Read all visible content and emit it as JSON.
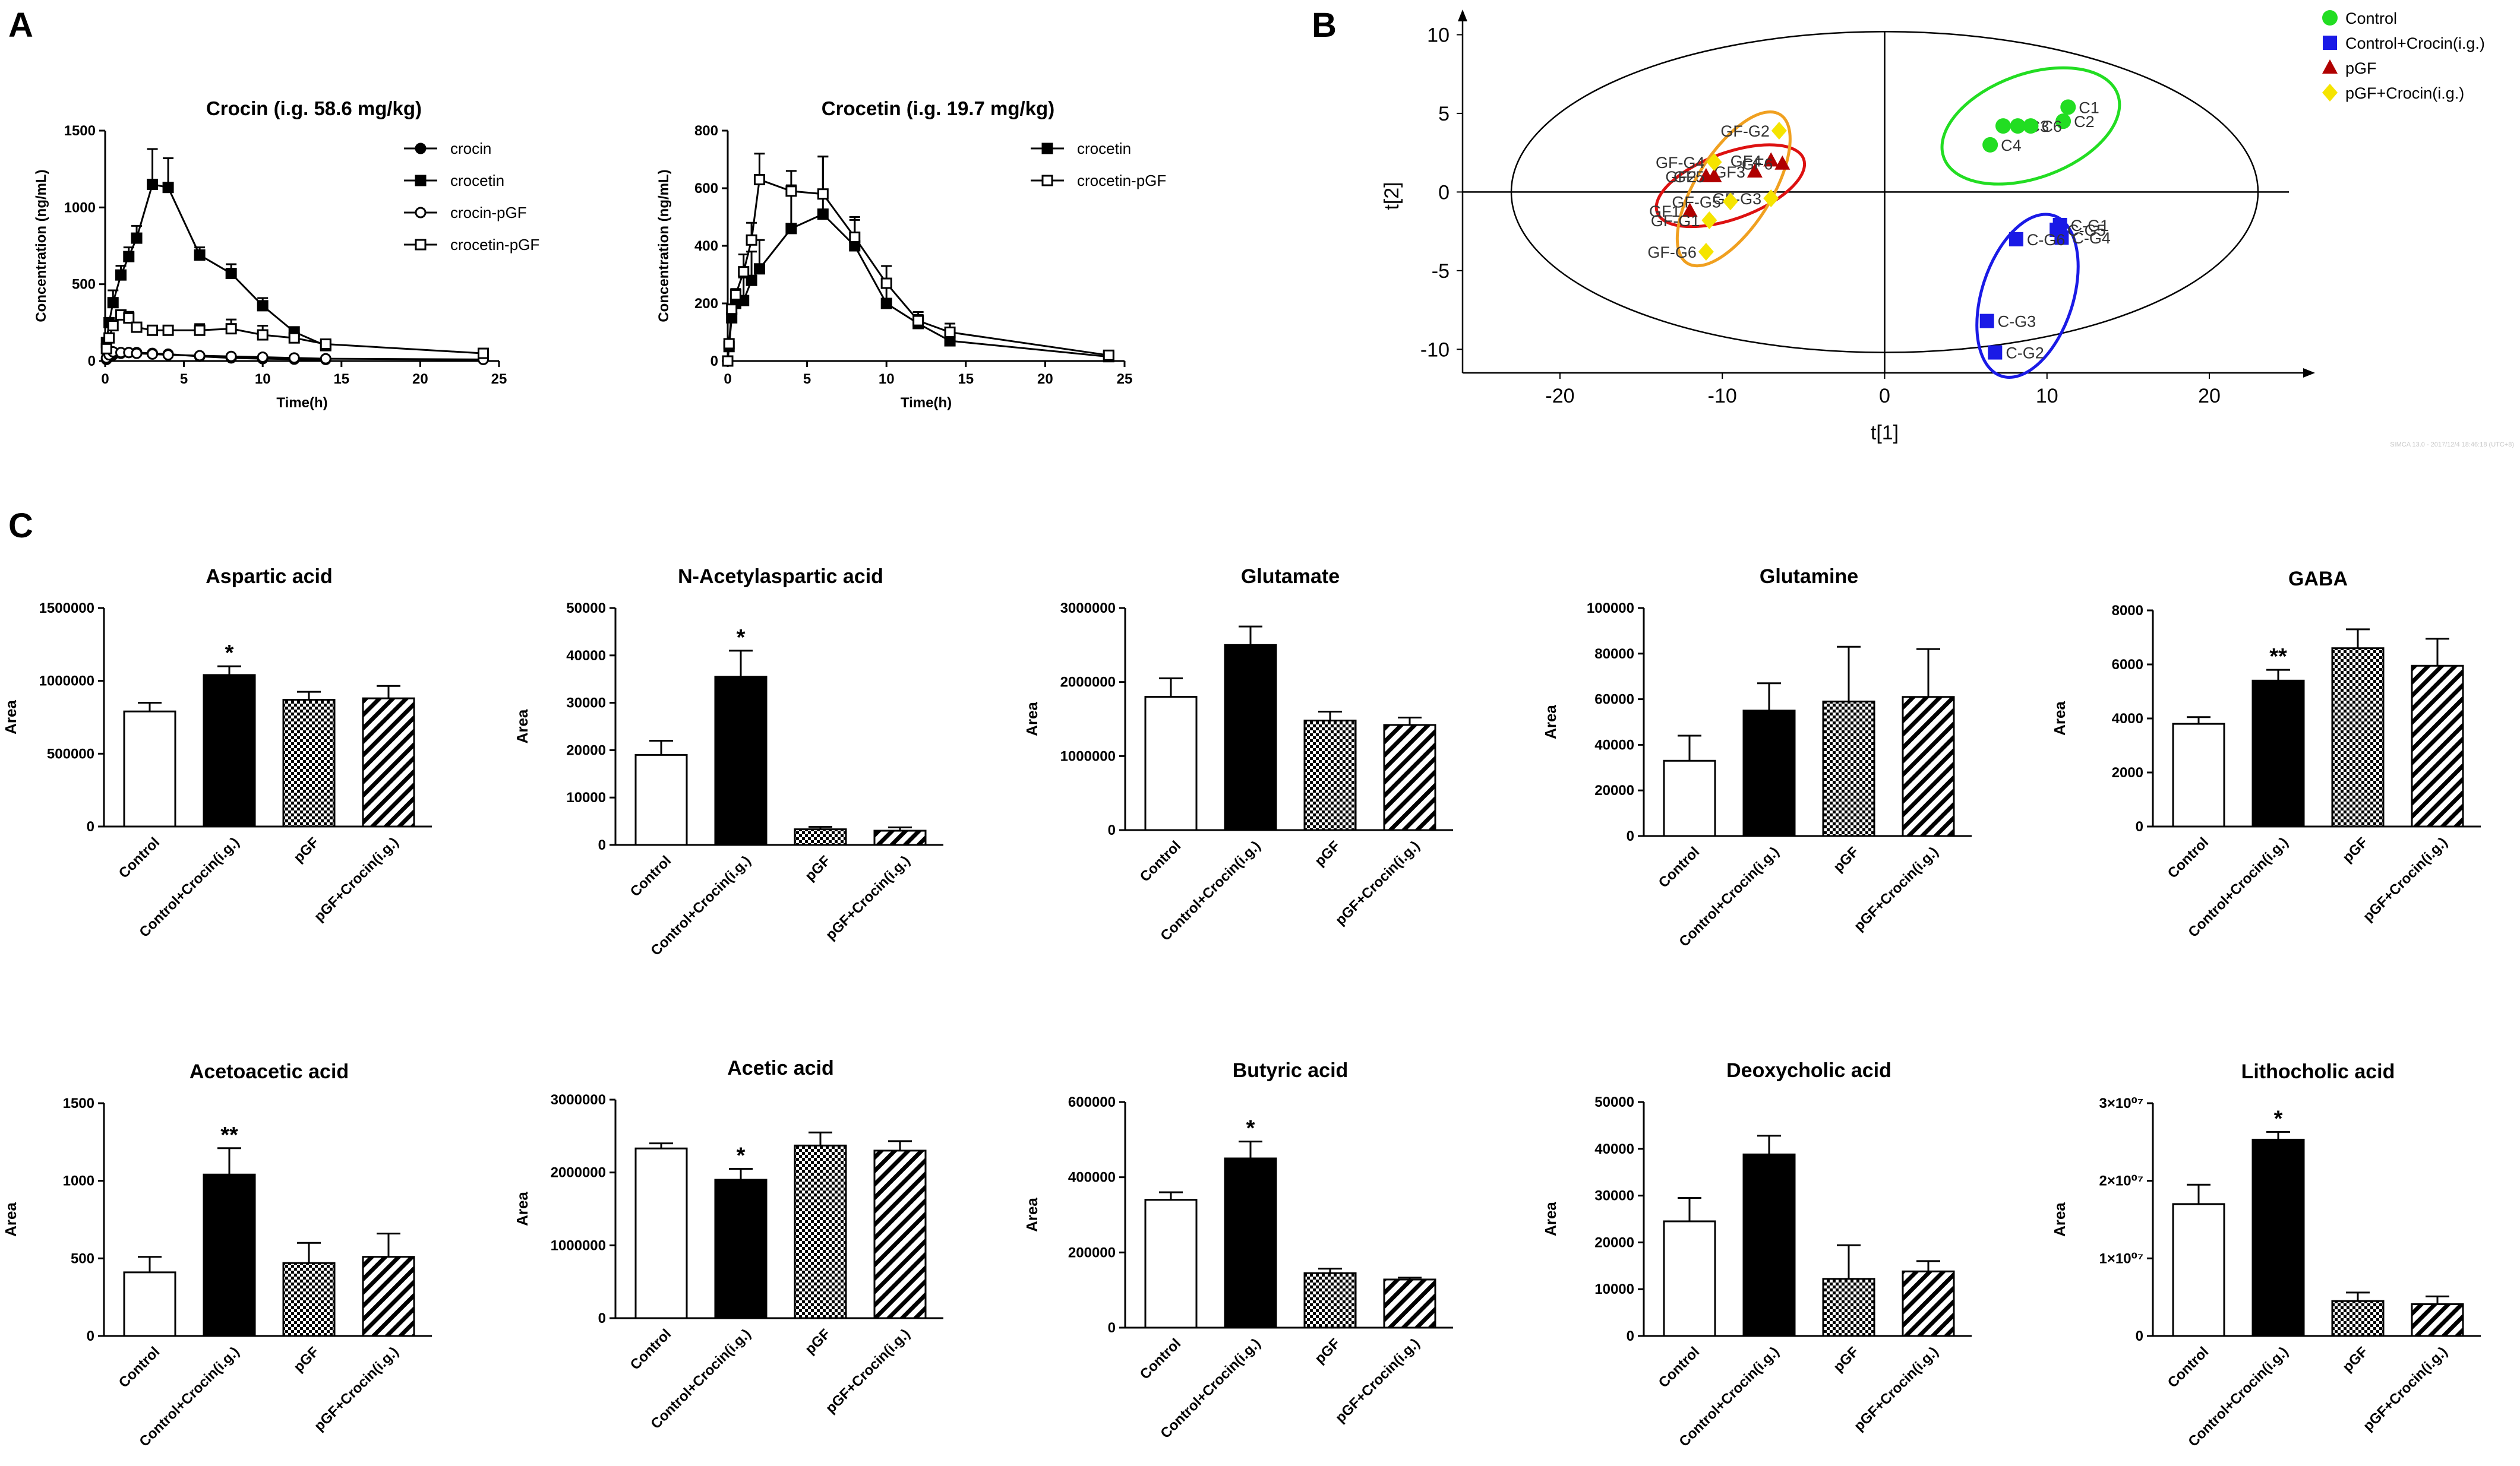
{
  "panel_labels": [
    "A",
    "B",
    "C"
  ],
  "colors": {
    "black": "#000000",
    "control": "#22dd22",
    "control_crocin": "#1a1ae6",
    "pgf": "#b00000",
    "pgf_crocin": "#f5e400",
    "ellipse_green": "#22dd22",
    "ellipse_blue": "#1a1ae6",
    "ellipse_red": "#dd1111",
    "ellipse_orange": "#f0a020"
  },
  "software_note": "SIMCA 13.0 - 2017/12/4 18:46:18 (UTC+8)",
  "chart_data": [
    {
      "id": "crocin_pk",
      "type": "line",
      "title": "Crocin (i.g. 58.6 mg/kg)",
      "xlabel": "Time(h)",
      "ylabel": "Concentration (ng/mL)",
      "xlim": [
        0,
        25
      ],
      "ylim": [
        0,
        1500
      ],
      "xticks": [
        0,
        5,
        10,
        15,
        20,
        25
      ],
      "yticks": [
        0,
        500,
        1000,
        1500
      ],
      "series": [
        {
          "name": "crocin",
          "marker": "filled-circle",
          "x": [
            0.083,
            0.25,
            0.5,
            1,
            1.5,
            2,
            3,
            4,
            6,
            8,
            10,
            12,
            14
          ],
          "y": [
            10,
            25,
            40,
            50,
            55,
            55,
            50,
            45,
            30,
            20,
            15,
            12,
            10
          ],
          "err": [
            0,
            0,
            0,
            0,
            0,
            0,
            0,
            0,
            0,
            0,
            0,
            0,
            0
          ]
        },
        {
          "name": "crocetin",
          "marker": "filled-square",
          "x": [
            0.083,
            0.25,
            0.5,
            1,
            1.5,
            2,
            3,
            4,
            6,
            8,
            10,
            12,
            14
          ],
          "y": [
            120,
            250,
            380,
            560,
            680,
            800,
            1150,
            1130,
            690,
            570,
            360,
            190,
            100
          ],
          "err": [
            0,
            0,
            80,
            60,
            60,
            80,
            230,
            190,
            50,
            60,
            50,
            0,
            0
          ]
        },
        {
          "name": "crocin-pGF",
          "marker": "open-circle",
          "x": [
            0.083,
            0.25,
            0.5,
            1,
            1.5,
            2,
            3,
            4,
            6,
            8,
            10,
            12,
            14,
            24
          ],
          "y": [
            20,
            40,
            60,
            55,
            55,
            50,
            45,
            40,
            35,
            30,
            25,
            20,
            15,
            10
          ],
          "err": [
            0,
            0,
            0,
            0,
            0,
            0,
            0,
            0,
            0,
            0,
            0,
            0,
            0,
            0
          ]
        },
        {
          "name": "crocetin-pGF",
          "marker": "open-square",
          "x": [
            0.083,
            0.25,
            0.5,
            1,
            1.5,
            2,
            3,
            4,
            6,
            8,
            10,
            12,
            14,
            24
          ],
          "y": [
            80,
            150,
            230,
            300,
            280,
            220,
            200,
            200,
            200,
            210,
            170,
            150,
            110,
            50
          ],
          "err": [
            0,
            0,
            0,
            0,
            40,
            0,
            0,
            0,
            40,
            60,
            60,
            0,
            0,
            30
          ]
        }
      ]
    },
    {
      "id": "crocetin_pk",
      "type": "line",
      "title": "Crocetin (i.g. 19.7 mg/kg)",
      "xlabel": "Time(h)",
      "ylabel": "Concentration (ng/mL)",
      "xlim": [
        0,
        25
      ],
      "ylim": [
        0,
        800
      ],
      "xticks": [
        0,
        5,
        10,
        15,
        20,
        25
      ],
      "yticks": [
        0,
        200,
        400,
        600,
        800
      ],
      "series": [
        {
          "name": "crocetin",
          "marker": "filled-square",
          "x": [
            0,
            0.083,
            0.25,
            0.5,
            1,
            1.5,
            2,
            4,
            6,
            8,
            10,
            12,
            14,
            24
          ],
          "y": [
            0,
            50,
            150,
            200,
            210,
            280,
            320,
            460,
            510,
            400,
            200,
            130,
            70,
            15
          ],
          "err": [
            0,
            0,
            0,
            50,
            80,
            100,
            100,
            150,
            200,
            100,
            60,
            30,
            0,
            0
          ]
        },
        {
          "name": "crocetin-pGF",
          "marker": "open-square",
          "x": [
            0,
            0.083,
            0.25,
            0.5,
            1,
            1.5,
            2,
            4,
            6,
            8,
            10,
            12,
            14,
            24
          ],
          "y": [
            0,
            60,
            180,
            230,
            310,
            420,
            630,
            590,
            580,
            430,
            270,
            140,
            100,
            20
          ],
          "err": [
            0,
            0,
            0,
            0,
            60,
            60,
            90,
            70,
            130,
            60,
            60,
            30,
            30,
            0
          ]
        }
      ]
    },
    {
      "id": "pca_scores",
      "type": "scatter",
      "xlabel": "t[1]",
      "ylabel": "t[2]",
      "xlim": [
        -26,
        26
      ],
      "ylim": [
        -11.5,
        11
      ],
      "xticks": [
        -20,
        -10,
        0,
        10,
        20
      ],
      "yticks": [
        -10,
        -5,
        0,
        5,
        10
      ],
      "legend": [
        "Control",
        "Control+Crocin(i.g.)",
        "pGF",
        "pGF+Crocin(i.g.)"
      ],
      "series": [
        {
          "name": "Control",
          "marker": "circle",
          "points": [
            {
              "x": 11.3,
              "y": 5.4,
              "label": "C1"
            },
            {
              "x": 11.0,
              "y": 4.5,
              "label": "C2"
            },
            {
              "x": 6.5,
              "y": 3.0,
              "label": "C4"
            },
            {
              "x": 7.3,
              "y": 4.2,
              "label": "C5"
            },
            {
              "x": 8.2,
              "y": 4.2,
              "label": "C3"
            },
            {
              "x": 9.0,
              "y": 4.2,
              "label": "C6"
            }
          ]
        },
        {
          "name": "Control+Crocin(i.g.)",
          "marker": "square",
          "points": [
            {
              "x": 10.8,
              "y": -2.1,
              "label": "C-G1"
            },
            {
              "x": 6.8,
              "y": -10.2,
              "label": "C-G2"
            },
            {
              "x": 6.3,
              "y": -8.2,
              "label": "C-G3"
            },
            {
              "x": 10.9,
              "y": -2.9,
              "label": "C-G4"
            },
            {
              "x": 10.6,
              "y": -2.4,
              "label": "C-G5"
            },
            {
              "x": 8.1,
              "y": -3.0,
              "label": "C-G6"
            }
          ]
        },
        {
          "name": "pGF",
          "marker": "triangle",
          "points": [
            {
              "x": -12.0,
              "y": -1.2,
              "label": "GF1"
            },
            {
              "x": -11.0,
              "y": 1.0,
              "label": "GF2"
            },
            {
              "x": -8.0,
              "y": 1.3,
              "label": "GF3"
            },
            {
              "x": -7.0,
              "y": 2.0,
              "label": "GF4"
            },
            {
              "x": -10.5,
              "y": 1.0,
              "label": "GF5"
            },
            {
              "x": -6.3,
              "y": 1.8,
              "label": "GF6"
            }
          ]
        },
        {
          "name": "pGF+Crocin(i.g.)",
          "marker": "diamond",
          "points": [
            {
              "x": -10.8,
              "y": -1.8,
              "label": "GF-G1"
            },
            {
              "x": -6.5,
              "y": 3.9,
              "label": "GF-G2"
            },
            {
              "x": -7.0,
              "y": -0.4,
              "label": "GF-G3"
            },
            {
              "x": -10.5,
              "y": 1.9,
              "label": "GF-G4"
            },
            {
              "x": -9.5,
              "y": -0.6,
              "label": "GF-G5"
            },
            {
              "x": -11.0,
              "y": -3.8,
              "label": "GF-G6"
            }
          ]
        }
      ],
      "group_ellipses": [
        {
          "color": "green",
          "cx": 9.0,
          "cy": 4.2,
          "rx": 5.7,
          "ry": 3.3,
          "angle": 20
        },
        {
          "color": "blue",
          "cx": 8.8,
          "cy": -6.6,
          "rx": 5.2,
          "ry": 2.9,
          "angle": 72
        },
        {
          "color": "red",
          "cx": -9.5,
          "cy": 0.4,
          "rx": 4.8,
          "ry": 2.1,
          "angle": 20
        },
        {
          "color": "orange",
          "cx": -9.3,
          "cy": 0.2,
          "rx": 5.4,
          "ry": 2.4,
          "angle": 58
        }
      ]
    },
    {
      "id": "aspartic",
      "type": "bar",
      "title": "Aspartic acid",
      "ylabel": "Area",
      "ylim": [
        0,
        1500000
      ],
      "yticks": [
        0,
        500000,
        1000000,
        1500000
      ],
      "ytick_labels": [
        "0",
        "500000",
        "1000000",
        "1500000"
      ],
      "categories": [
        "Control",
        "Control+Crocin(i.g.)",
        "pGF",
        "pGF+Crocin(i.g.)"
      ],
      "values": [
        790000,
        1040000,
        870000,
        880000
      ],
      "errors": [
        60000,
        60000,
        55000,
        85000
      ],
      "sig": [
        "",
        "*",
        "",
        ""
      ]
    },
    {
      "id": "naa",
      "type": "bar",
      "title": "N-Acetylaspartic acid",
      "ylabel": "Area",
      "ylim": [
        0,
        50000
      ],
      "yticks": [
        0,
        10000,
        20000,
        30000,
        40000,
        50000
      ],
      "ytick_labels": [
        "0",
        "10000",
        "20000",
        "30000",
        "40000",
        "50000"
      ],
      "categories": [
        "Control",
        "Control+Crocin(i.g.)",
        "pGF",
        "pGF+Crocin(i.g.)"
      ],
      "values": [
        19000,
        35500,
        3300,
        3000
      ],
      "errors": [
        3000,
        5500,
        500,
        700
      ],
      "sig": [
        "",
        "*",
        "",
        ""
      ]
    },
    {
      "id": "glutamate",
      "type": "bar",
      "title": "Glutamate",
      "ylabel": "Area",
      "ylim": [
        0,
        3000000
      ],
      "yticks": [
        0,
        1000000,
        2000000,
        3000000
      ],
      "ytick_labels": [
        "0",
        "1000000",
        "2000000",
        "3000000"
      ],
      "categories": [
        "Control",
        "Control+Crocin(i.g.)",
        "pGF",
        "pGF+Crocin(i.g.)"
      ],
      "values": [
        1800000,
        2500000,
        1480000,
        1420000
      ],
      "errors": [
        250000,
        250000,
        120000,
        100000
      ],
      "sig": [
        "",
        "",
        "",
        ""
      ]
    },
    {
      "id": "glutamine",
      "type": "bar",
      "title": "Glutamine",
      "ylabel": "Area",
      "ylim": [
        0,
        100000
      ],
      "yticks": [
        0,
        20000,
        40000,
        60000,
        80000,
        100000
      ],
      "ytick_labels": [
        "0",
        "20000",
        "40000",
        "60000",
        "80000",
        "100000"
      ],
      "categories": [
        "Control",
        "Control+Crocin(i.g.)",
        "pGF",
        "pGF+Crocin(i.g.)"
      ],
      "values": [
        33000,
        55000,
        59000,
        61000
      ],
      "errors": [
        11000,
        12000,
        24000,
        21000
      ],
      "sig": [
        "",
        "",
        "",
        ""
      ]
    },
    {
      "id": "gaba",
      "type": "bar",
      "title": "GABA",
      "ylabel": "Area",
      "ylim": [
        0,
        8000
      ],
      "yticks": [
        0,
        2000,
        4000,
        6000,
        8000
      ],
      "ytick_labels": [
        "0",
        "2000",
        "4000",
        "6000",
        "8000"
      ],
      "categories": [
        "Control",
        "Control+Crocin(i.g.)",
        "pGF",
        "pGF+Crocin(i.g.)"
      ],
      "values": [
        3800,
        5400,
        6600,
        5950
      ],
      "errors": [
        250,
        400,
        700,
        1000
      ],
      "sig": [
        "",
        "**",
        "",
        ""
      ]
    },
    {
      "id": "acetoacetic",
      "type": "bar",
      "title": "Acetoacetic acid",
      "ylabel": "Area",
      "ylim": [
        0,
        1500
      ],
      "yticks": [
        0,
        500,
        1000,
        1500
      ],
      "ytick_labels": [
        "0",
        "500",
        "1000",
        "1500"
      ],
      "categories": [
        "Control",
        "Control+Crocin(i.g.)",
        "pGF",
        "pGF+Crocin(i.g.)"
      ],
      "values": [
        410,
        1040,
        470,
        510
      ],
      "errors": [
        100,
        170,
        130,
        150
      ],
      "sig": [
        "",
        "**",
        "",
        ""
      ]
    },
    {
      "id": "acetic",
      "type": "bar",
      "title": "Acetic acid",
      "ylabel": "Area",
      "ylim": [
        0,
        3000000
      ],
      "yticks": [
        0,
        1000000,
        2000000,
        3000000
      ],
      "ytick_labels": [
        "0",
        "1000000",
        "2000000",
        "3000000"
      ],
      "categories": [
        "Control",
        "Control+Crocin(i.g.)",
        "pGF",
        "pGF+Crocin(i.g.)"
      ],
      "values": [
        2330000,
        1900000,
        2370000,
        2300000
      ],
      "errors": [
        70000,
        150000,
        180000,
        130000
      ],
      "sig": [
        "",
        "*",
        "",
        ""
      ]
    },
    {
      "id": "butyric",
      "type": "bar",
      "title": "Butyric acid",
      "ylabel": "Area",
      "ylim": [
        0,
        600000
      ],
      "yticks": [
        0,
        200000,
        400000,
        600000
      ],
      "ytick_labels": [
        "0",
        "200000",
        "400000",
        "600000"
      ],
      "categories": [
        "Control",
        "Control+Crocin(i.g.)",
        "pGF",
        "pGF+Crocin(i.g.)"
      ],
      "values": [
        340000,
        450000,
        145000,
        128000
      ],
      "errors": [
        20000,
        45000,
        12000,
        5000
      ],
      "sig": [
        "",
        "*",
        "",
        ""
      ]
    },
    {
      "id": "deoxycholic",
      "type": "bar",
      "title": "Deoxycholic acid",
      "ylabel": "Area",
      "ylim": [
        0,
        50000
      ],
      "yticks": [
        0,
        10000,
        20000,
        30000,
        40000,
        50000
      ],
      "ytick_labels": [
        "0",
        "10000",
        "20000",
        "30000",
        "40000",
        "50000"
      ],
      "categories": [
        "Control",
        "Control+Crocin(i.g.)",
        "pGF",
        "pGF+Crocin(i.g.)"
      ],
      "values": [
        24500,
        38800,
        12200,
        13800
      ],
      "errors": [
        5000,
        4000,
        7200,
        2200
      ],
      "sig": [
        "",
        "",
        "",
        ""
      ]
    },
    {
      "id": "lithocholic",
      "type": "bar",
      "title": "Lithocholic acid",
      "ylabel": "Area",
      "ylim": [
        0,
        30000000
      ],
      "yticks": [
        0,
        10000000,
        20000000,
        30000000
      ],
      "ytick_labels": [
        "0",
        "1×10⁰⁷",
        "2×10⁰⁷",
        "3×10⁰⁷"
      ],
      "categories": [
        "Control",
        "Control+Crocin(i.g.)",
        "pGF",
        "pGF+Crocin(i.g.)"
      ],
      "values": [
        17000000,
        25300000,
        4500000,
        4100000
      ],
      "errors": [
        2500000,
        1000000,
        1100000,
        1000000
      ],
      "sig": [
        "",
        "*",
        "",
        ""
      ]
    }
  ]
}
